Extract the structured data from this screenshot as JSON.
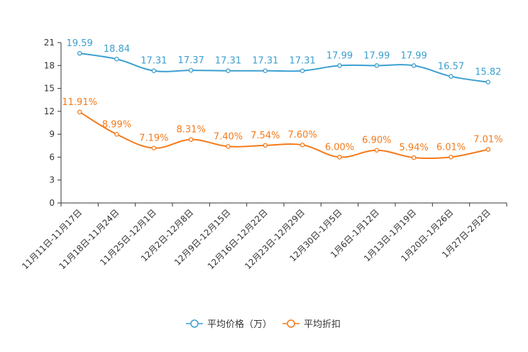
{
  "chart_data": {
    "type": "line",
    "categories": [
      "11月11日-11月17日",
      "11月18日-11月24日",
      "11月25日-12月1日",
      "12月2日-12月8日",
      "12月9日-12月15日",
      "12月16日-12月22日",
      "12月23日-12月29日",
      "12月30日-1月5日",
      "1月6日-1月12日",
      "1月13日-1月19日",
      "1月20日-1月26日",
      "1月27日-2月2日"
    ],
    "series": [
      {
        "name": "平均价格（万）",
        "color": "#3b9fd0",
        "values": [
          19.59,
          18.84,
          17.31,
          17.37,
          17.31,
          17.31,
          17.31,
          17.99,
          17.99,
          17.99,
          16.57,
          15.82
        ],
        "labels": [
          "19.59",
          "18.84",
          "17.31",
          "17.37",
          "17.31",
          "17.31",
          "17.31",
          "17.99",
          "17.99",
          "17.99",
          "16.57",
          "15.82"
        ]
      },
      {
        "name": "平均折扣",
        "color": "#f47a1a",
        "values": [
          11.91,
          8.99,
          7.19,
          8.31,
          7.4,
          7.54,
          7.6,
          6.0,
          6.9,
          5.94,
          6.01,
          7.01
        ],
        "labels": [
          "11.91%",
          "8.99%",
          "7.19%",
          "8.31%",
          "7.40%",
          "7.54%",
          "7.60%",
          "6.00%",
          "6.90%",
          "5.94%",
          "6.01%",
          "7.01%"
        ]
      }
    ],
    "ylim": [
      0,
      21
    ],
    "yticks": [
      "0",
      "3",
      "6",
      "9",
      "12",
      "15",
      "18",
      "21"
    ],
    "grid": false,
    "legend_position": "bottom-center",
    "title": "",
    "xlabel": "",
    "ylabel": ""
  }
}
